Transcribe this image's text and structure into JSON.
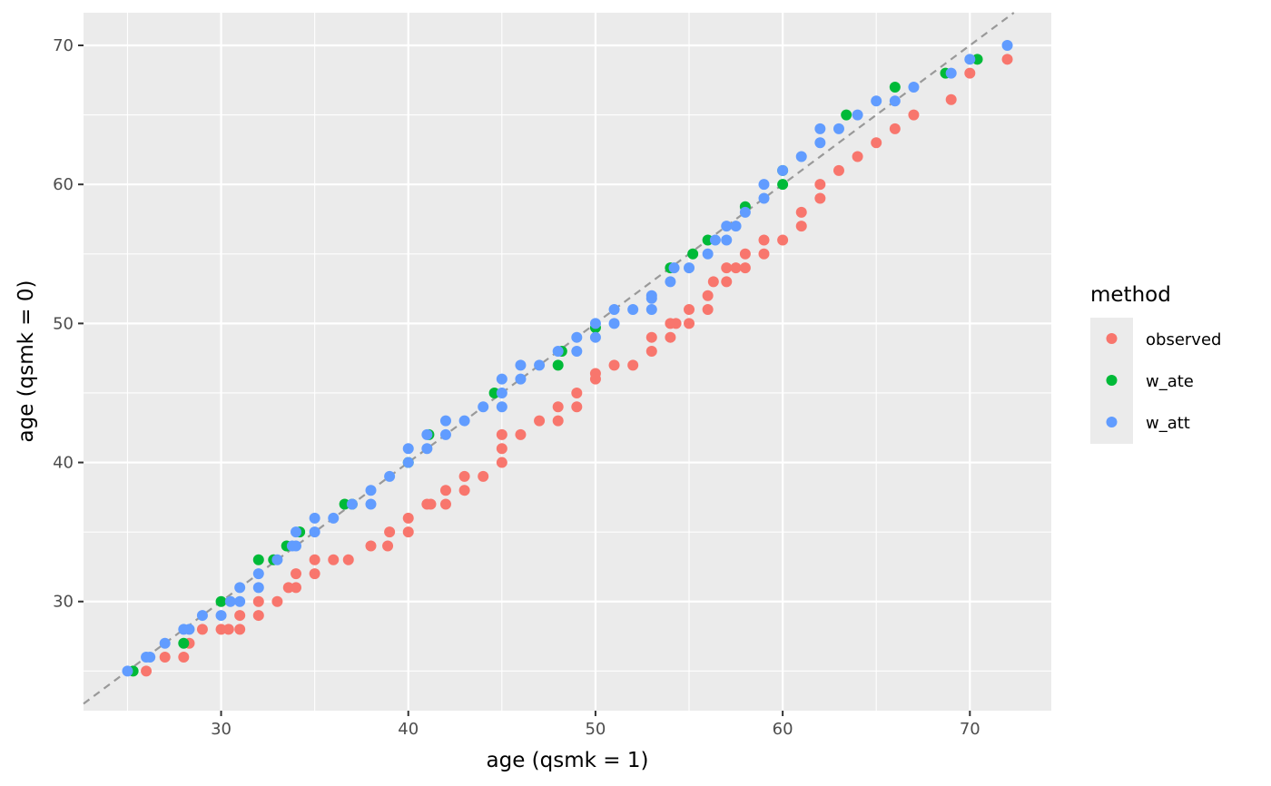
{
  "chart_data": {
    "type": "scatter",
    "title": "",
    "xlabel": "age (qsmk = 1)",
    "ylabel": "age (qsmk = 0)",
    "xlim": [
      22.65,
      74.35
    ],
    "ylim": [
      22.15,
      72.35
    ],
    "x_ticks": [
      30,
      40,
      50,
      60,
      70
    ],
    "y_ticks": [
      30,
      40,
      50,
      60,
      70
    ],
    "x_tick_labels": [
      "30",
      "40",
      "50",
      "60",
      "70"
    ],
    "y_tick_labels": [
      "30",
      "40",
      "50",
      "60",
      "70"
    ],
    "grid": true,
    "reference_line": {
      "type": "y=x",
      "style": "dashed",
      "color": "#999999"
    },
    "legend": {
      "title": "method",
      "position": "right"
    },
    "series": [
      {
        "name": "observed",
        "color": "#F8766D",
        "points": [
          [
            26,
            25
          ],
          [
            27,
            26
          ],
          [
            28,
            26
          ],
          [
            28.3,
            27
          ],
          [
            29,
            28
          ],
          [
            30,
            28
          ],
          [
            30.4,
            28
          ],
          [
            31,
            28
          ],
          [
            31,
            29
          ],
          [
            32,
            29
          ],
          [
            32,
            30
          ],
          [
            33,
            30
          ],
          [
            33.6,
            31
          ],
          [
            34,
            31
          ],
          [
            34,
            32
          ],
          [
            35,
            32
          ],
          [
            35,
            33
          ],
          [
            36,
            33
          ],
          [
            36.8,
            33
          ],
          [
            38,
            34
          ],
          [
            38.9,
            34
          ],
          [
            39,
            35
          ],
          [
            40,
            35
          ],
          [
            40,
            36
          ],
          [
            41,
            37
          ],
          [
            41.2,
            37
          ],
          [
            42,
            37
          ],
          [
            42,
            38
          ],
          [
            43,
            38
          ],
          [
            43,
            39
          ],
          [
            44,
            39
          ],
          [
            45,
            40
          ],
          [
            45,
            41
          ],
          [
            45,
            42
          ],
          [
            46,
            42
          ],
          [
            47,
            43
          ],
          [
            48,
            43
          ],
          [
            48,
            44
          ],
          [
            49,
            44
          ],
          [
            49,
            45
          ],
          [
            50,
            46
          ],
          [
            50,
            46.4
          ],
          [
            51,
            47
          ],
          [
            52,
            47
          ],
          [
            53,
            48
          ],
          [
            53,
            49
          ],
          [
            54,
            49
          ],
          [
            54,
            50
          ],
          [
            54.3,
            50
          ],
          [
            55,
            50
          ],
          [
            55,
            51
          ],
          [
            56,
            51
          ],
          [
            56,
            52
          ],
          [
            56.3,
            53
          ],
          [
            57,
            53
          ],
          [
            57,
            54
          ],
          [
            57.5,
            54
          ],
          [
            58,
            54
          ],
          [
            58,
            55
          ],
          [
            59,
            55
          ],
          [
            59,
            56
          ],
          [
            60,
            56
          ],
          [
            61,
            57
          ],
          [
            61,
            58
          ],
          [
            62,
            59
          ],
          [
            62,
            60
          ],
          [
            63,
            61
          ],
          [
            64,
            62
          ],
          [
            65,
            63
          ],
          [
            66,
            64
          ],
          [
            67,
            65
          ],
          [
            69,
            66.1
          ],
          [
            70,
            68
          ],
          [
            72,
            69
          ]
        ]
      },
      {
        "name": "w_ate",
        "color": "#00BA38",
        "points": [
          [
            25.3,
            25
          ],
          [
            28,
            27
          ],
          [
            30,
            30
          ],
          [
            32,
            33
          ],
          [
            32.8,
            33
          ],
          [
            33.5,
            34
          ],
          [
            34.2,
            35
          ],
          [
            36.6,
            37
          ],
          [
            37,
            37
          ],
          [
            40,
            40
          ],
          [
            41.1,
            42
          ],
          [
            44.6,
            45
          ],
          [
            48,
            47
          ],
          [
            48.2,
            48
          ],
          [
            50,
            49.7
          ],
          [
            54,
            54
          ],
          [
            55.2,
            55
          ],
          [
            56,
            56
          ],
          [
            58,
            58.4
          ],
          [
            60,
            60
          ],
          [
            60,
            61
          ],
          [
            63.4,
            65
          ],
          [
            66,
            67
          ],
          [
            68.7,
            68
          ],
          [
            70.4,
            69
          ]
        ]
      },
      {
        "name": "w_att",
        "color": "#619CFF",
        "points": [
          [
            25,
            25
          ],
          [
            26,
            26
          ],
          [
            26.2,
            26
          ],
          [
            27,
            27
          ],
          [
            28,
            28
          ],
          [
            28.3,
            28
          ],
          [
            29,
            29
          ],
          [
            30,
            29
          ],
          [
            30.5,
            30
          ],
          [
            31,
            30
          ],
          [
            31,
            31
          ],
          [
            32,
            31
          ],
          [
            32,
            32
          ],
          [
            33,
            33
          ],
          [
            33.8,
            34
          ],
          [
            34,
            34
          ],
          [
            34,
            35
          ],
          [
            35,
            35
          ],
          [
            35,
            36
          ],
          [
            36,
            36
          ],
          [
            37,
            37
          ],
          [
            38,
            37
          ],
          [
            38,
            38
          ],
          [
            39,
            39
          ],
          [
            40,
            40
          ],
          [
            40,
            41
          ],
          [
            41,
            41
          ],
          [
            41,
            42
          ],
          [
            42,
            42
          ],
          [
            42,
            43
          ],
          [
            43,
            43
          ],
          [
            44,
            44
          ],
          [
            45,
            44
          ],
          [
            45,
            45
          ],
          [
            45,
            46
          ],
          [
            46,
            46
          ],
          [
            46,
            47
          ],
          [
            47,
            47
          ],
          [
            48,
            48
          ],
          [
            49,
            48
          ],
          [
            49,
            49
          ],
          [
            50,
            49
          ],
          [
            50,
            50
          ],
          [
            51,
            50
          ],
          [
            51,
            51
          ],
          [
            52,
            51
          ],
          [
            53,
            51
          ],
          [
            53,
            51.8
          ],
          [
            53,
            52
          ],
          [
            54,
            53
          ],
          [
            54.2,
            54
          ],
          [
            55,
            54
          ],
          [
            56,
            55
          ],
          [
            56.4,
            56
          ],
          [
            57,
            56
          ],
          [
            57,
            57
          ],
          [
            57.5,
            57
          ],
          [
            58,
            58
          ],
          [
            59,
            59
          ],
          [
            59,
            60
          ],
          [
            60,
            61
          ],
          [
            61,
            62
          ],
          [
            62,
            63
          ],
          [
            62,
            64
          ],
          [
            63,
            64
          ],
          [
            64,
            65
          ],
          [
            65,
            66
          ],
          [
            66,
            66
          ],
          [
            67,
            67
          ],
          [
            69,
            68
          ],
          [
            70,
            69
          ],
          [
            72,
            70
          ]
        ]
      }
    ]
  }
}
